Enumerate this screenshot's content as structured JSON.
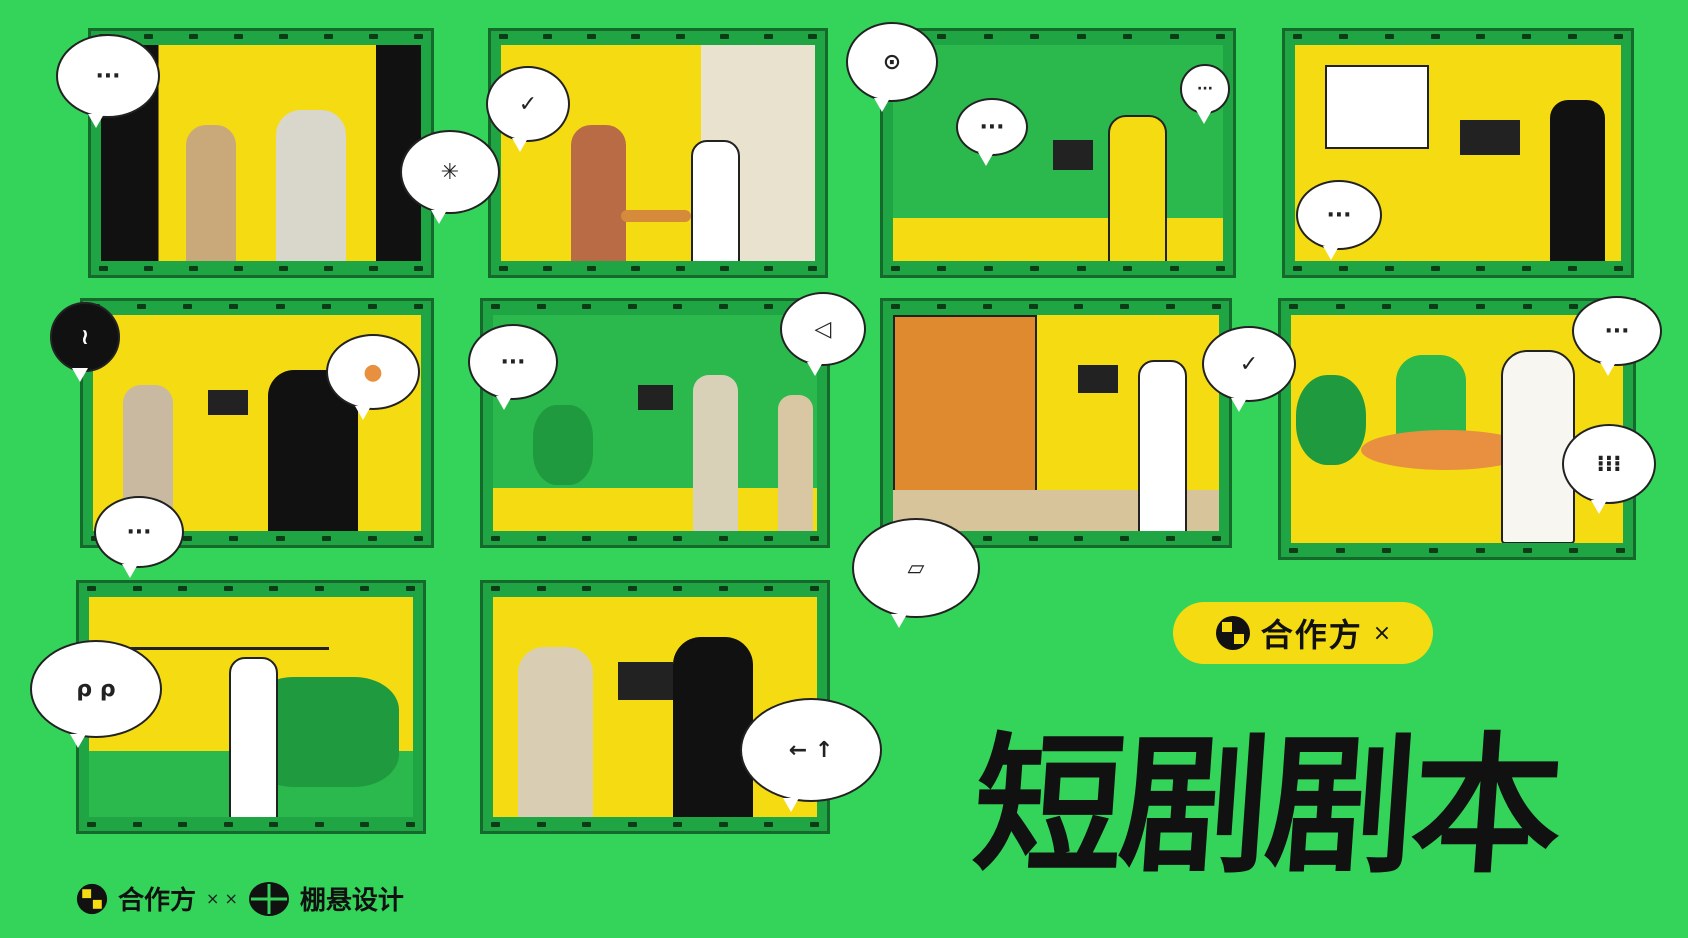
{
  "colors": {
    "background": "#34d35a",
    "scene": "#f5dc12",
    "frame": "#1fa543",
    "ink": "#111111"
  },
  "bubbles": {
    "b1": "···",
    "b2": "✳",
    "b3": "✓",
    "b4": "⊙",
    "b5": "···",
    "b6": "···",
    "b7": "···",
    "b8": "≀",
    "b9": "●",
    "b10": "···",
    "b11": "···",
    "b12": "◁",
    "b13": "✓",
    "b14": "···",
    "b15": "⁝⁝⁝",
    "b16": "▱",
    "b17": "ρ ρ",
    "b18": "← ↑"
  },
  "badge": {
    "logo": "partner-logo-icon",
    "label": "合作方",
    "mark": "×"
  },
  "title": "短剧剧本",
  "footer": {
    "partner_label": "合作方",
    "separator": "× ×",
    "brand_label": "棚悬设计"
  }
}
